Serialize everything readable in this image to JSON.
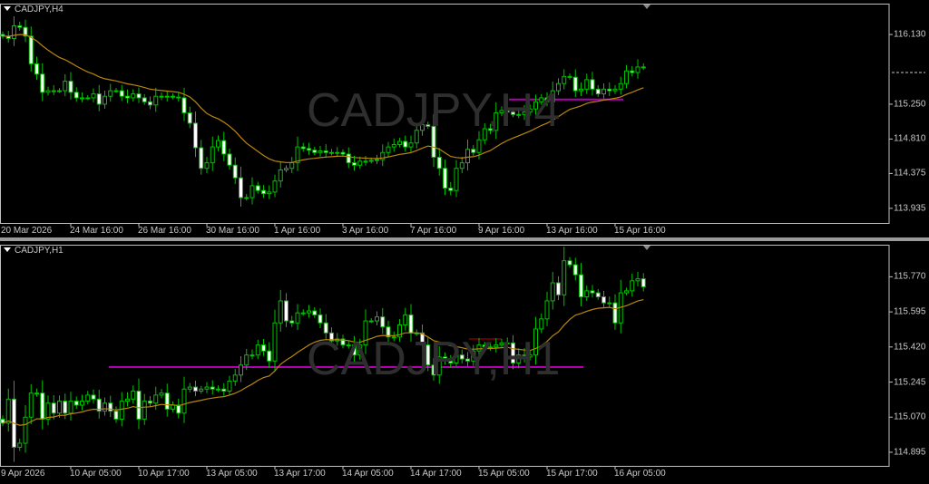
{
  "colors": {
    "background": "#000000",
    "bull_outline": "#00c000",
    "bear_fill": "#ffffff",
    "wick": "#00c000",
    "ma": "#b8860b",
    "level_line": "#b000b0",
    "short_line": "#c00000",
    "axis": "#c8c8c8",
    "watermark": "#2e2e2e"
  },
  "icons": {
    "window_menu": "triangle-down-icon",
    "chart_shift": "triangle-marker-icon"
  },
  "top": {
    "title": "CADJPY,H4",
    "watermark": "CADJPY,H4",
    "price_labels": [
      "116.130",
      "115.250",
      "114.810",
      "114.375",
      "113.935"
    ],
    "time_labels": [
      "20 Mar 2026",
      "24 Mar 16:00",
      "26 Mar 16:00",
      "30 Mar 16:00",
      "1 Apr 16:00",
      "3 Apr 16:00",
      "7 Apr 16:00",
      "9 Apr 16:00",
      "13 Apr 16:00",
      "15 Apr 16:00"
    ]
  },
  "bottom": {
    "title": "CADJPY,H1",
    "watermark": "CADJPY,H1",
    "price_labels": [
      "115.770",
      "115.595",
      "115.420",
      "115.245",
      "115.070",
      "114.895"
    ],
    "time_labels": [
      "9 Apr 2026",
      "10 Apr 05:00",
      "10 Apr 17:00",
      "13 Apr 05:00",
      "13 Apr 17:00",
      "14 Apr 05:00",
      "14 Apr 17:00",
      "15 Apr 05:00",
      "15 Apr 17:00",
      "16 Apr 05:00"
    ]
  },
  "chart_data": [
    {
      "type": "candlestick",
      "symbol": "CADJPY",
      "timeframe": "H4",
      "ylim": [
        113.75,
        116.52
      ],
      "yticks": [
        116.13,
        115.25,
        114.81,
        114.375,
        113.935
      ],
      "current_price_marker": 115.65,
      "horizontal_lines": [
        {
          "price": 115.31,
          "color": "#b000b0"
        }
      ],
      "moving_average": true,
      "closes": [
        116.11,
        116.08,
        116.24,
        116.22,
        116.11,
        115.76,
        115.63,
        115.4,
        115.42,
        115.42,
        115.42,
        115.54,
        115.4,
        115.33,
        115.33,
        115.33,
        115.38,
        115.25,
        115.35,
        115.42,
        115.42,
        115.35,
        115.33,
        115.38,
        115.33,
        115.28,
        115.24,
        115.35,
        115.34,
        115.35,
        115.34,
        115.33,
        115.14,
        115.01,
        114.7,
        114.44,
        114.51,
        114.71,
        114.79,
        114.62,
        114.48,
        114.32,
        114.07,
        114.07,
        114.22,
        114.16,
        114.12,
        114.14,
        114.28,
        114.42,
        114.44,
        114.51,
        114.71,
        114.69,
        114.67,
        114.64,
        114.66,
        114.64,
        114.64,
        114.64,
        114.62,
        114.51,
        114.48,
        114.53,
        114.53,
        114.54,
        114.55,
        114.64,
        114.71,
        114.74,
        114.78,
        114.71,
        114.76,
        114.92,
        114.99,
        114.97,
        114.58,
        114.44,
        114.19,
        114.16,
        114.44,
        114.51,
        114.68,
        114.64,
        114.8,
        114.94,
        114.92,
        115.14,
        115.17,
        115.15,
        115.12,
        115.12,
        115.15,
        115.19,
        115.28,
        115.33,
        115.28,
        115.42,
        115.51,
        115.6,
        115.59,
        115.42,
        115.44,
        115.56,
        115.44,
        115.38,
        115.44,
        115.42,
        115.44,
        115.51,
        115.67,
        115.65,
        115.72,
        115.72
      ]
    },
    {
      "type": "candlestick",
      "symbol": "CADJPY",
      "timeframe": "H1",
      "ylim": [
        114.827,
        115.93
      ],
      "yticks": [
        115.77,
        115.595,
        115.42,
        115.245,
        115.07,
        114.895
      ],
      "horizontal_lines": [
        {
          "price": 115.32,
          "color": "#b000b0"
        },
        {
          "price": 115.46,
          "color": "#c00000",
          "short": true
        }
      ],
      "moving_average": true,
      "closes": [
        115.04,
        115.16,
        114.92,
        114.94,
        115.07,
        115.19,
        115.19,
        115.06,
        115.14,
        115.09,
        115.15,
        115.09,
        115.15,
        115.13,
        115.15,
        115.18,
        115.16,
        115.1,
        115.14,
        115.1,
        115.06,
        115.15,
        115.16,
        115.2,
        115.06,
        115.15,
        115.14,
        115.18,
        115.19,
        115.11,
        115.13,
        115.09,
        115.21,
        115.22,
        115.2,
        115.21,
        115.22,
        115.21,
        115.21,
        115.2,
        115.25,
        115.28,
        115.33,
        115.38,
        115.38,
        115.43,
        115.4,
        115.35,
        115.54,
        115.65,
        115.55,
        115.54,
        115.59,
        115.59,
        115.6,
        115.58,
        115.54,
        115.49,
        115.45,
        115.46,
        115.43,
        115.43,
        115.38,
        115.43,
        115.55,
        115.55,
        115.57,
        115.52,
        115.47,
        115.47,
        115.53,
        115.58,
        115.49,
        115.49,
        115.43,
        115.33,
        115.28,
        115.37,
        115.35,
        115.34,
        115.38,
        115.36,
        115.35,
        115.4,
        115.43,
        115.42,
        115.42,
        115.43,
        115.44,
        115.44,
        115.34,
        115.38,
        115.37,
        115.38,
        115.51,
        115.56,
        115.65,
        115.74,
        115.68,
        115.85,
        115.83,
        115.78,
        115.67,
        115.7,
        115.69,
        115.67,
        115.64,
        115.64,
        115.54,
        115.69,
        115.7,
        115.75,
        115.76,
        115.72
      ]
    }
  ]
}
